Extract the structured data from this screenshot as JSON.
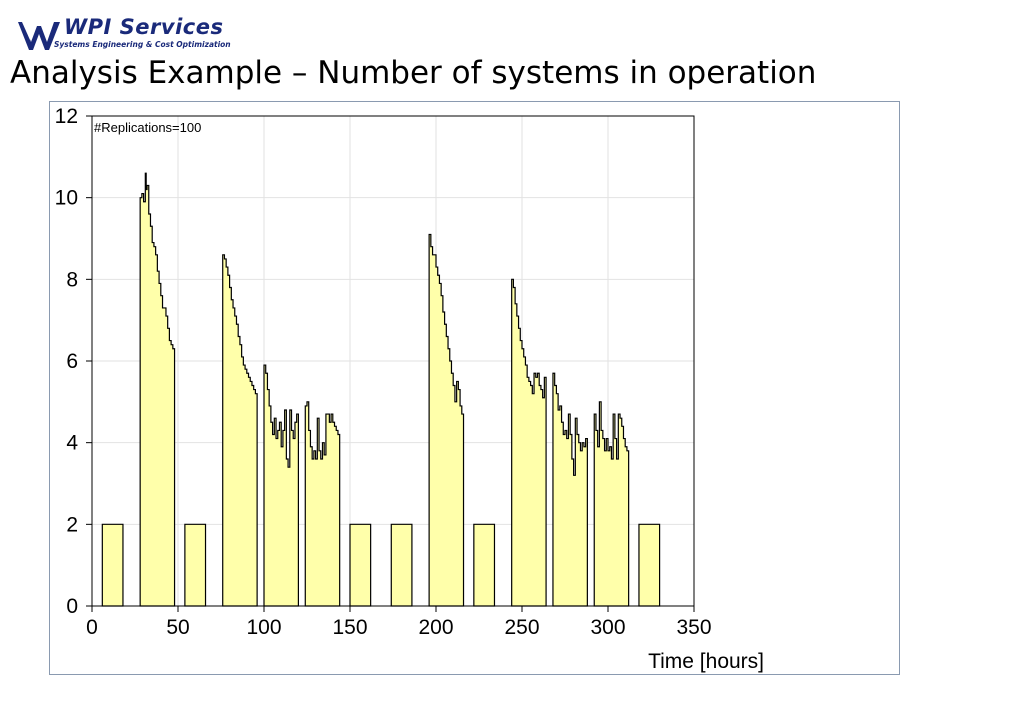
{
  "header": {
    "logo_name": "WPI Services",
    "logo_tagline": "Systems Engineering & Cost Optimization",
    "title": "Analysis Example – Number of systems in operation"
  },
  "chart_data": {
    "type": "area",
    "title": "",
    "annotation": "#Replications=100",
    "xlabel": "Time [hours]",
    "ylabel": "",
    "xlim": [
      0,
      350
    ],
    "ylim": [
      0,
      12
    ],
    "xticks": [
      0,
      50,
      100,
      150,
      200,
      250,
      300,
      350
    ],
    "yticks": [
      0,
      2,
      4,
      6,
      8,
      10,
      12
    ],
    "grid": true,
    "fill_color": "#ffffaa",
    "line_color": "#000000",
    "series": [
      {
        "segments": [
          {
            "x": [
              6,
              18
            ],
            "y": [
              2,
              2
            ]
          },
          {
            "x": [
              28,
              29,
              30,
              31,
              31.5,
              32,
              33,
              34,
              35,
              36,
              37,
              38,
              39,
              40,
              41,
              42,
              43,
              44,
              45,
              46,
              47,
              48
            ],
            "y": [
              10,
              10.1,
              9.9,
              10.6,
              10.2,
              10.3,
              9.6,
              9.3,
              8.9,
              8.8,
              8.6,
              8.2,
              7.9,
              7.6,
              7.3,
              7.3,
              7.1,
              6.8,
              6.5,
              6.4,
              6.3,
              6.3
            ]
          },
          {
            "x": [
              54,
              66
            ],
            "y": [
              2,
              2
            ]
          },
          {
            "x": [
              76,
              77,
              78,
              79,
              80,
              81,
              82,
              83,
              84,
              85,
              86,
              87,
              88,
              89,
              90,
              91,
              92,
              93,
              94,
              95,
              96
            ],
            "y": [
              8.6,
              8.5,
              8.3,
              8.1,
              7.8,
              7.5,
              7.3,
              7.1,
              6.9,
              6.6,
              6.4,
              6.1,
              5.9,
              5.8,
              5.7,
              5.6,
              5.5,
              5.4,
              5.3,
              5.2,
              5.2
            ]
          },
          {
            "x": [
              100,
              101,
              102,
              103,
              104,
              105,
              106,
              107,
              108,
              109,
              110,
              111,
              112,
              113,
              114,
              115,
              116,
              117,
              118,
              119,
              120
            ],
            "y": [
              5.9,
              5.7,
              5.3,
              4.9,
              4.5,
              4.2,
              4.6,
              4.1,
              4.3,
              4.5,
              3.9,
              4.3,
              4.8,
              3.6,
              3.4,
              4.8,
              4.3,
              4.1,
              4.5,
              4.7,
              4.3
            ]
          },
          {
            "x": [
              124,
              125,
              126,
              127,
              128,
              129,
              130,
              131,
              132,
              133,
              134,
              135,
              136,
              137,
              138,
              139,
              140,
              141,
              142,
              143,
              144
            ],
            "y": [
              4.9,
              5.0,
              4.3,
              3.9,
              3.6,
              3.8,
              3.6,
              4.6,
              3.8,
              3.6,
              4.0,
              3.7,
              4.7,
              4.7,
              4.5,
              4.7,
              4.5,
              4.4,
              4.3,
              4.2,
              4.1
            ]
          },
          {
            "x": [
              150,
              162
            ],
            "y": [
              2,
              2
            ]
          },
          {
            "x": [
              174,
              186
            ],
            "y": [
              2,
              2
            ]
          },
          {
            "x": [
              196,
              197,
              198,
              199,
              200,
              201,
              202,
              203,
              204,
              205,
              206,
              207,
              208,
              209,
              210,
              211,
              212,
              213,
              214,
              215,
              216
            ],
            "y": [
              9.1,
              8.8,
              8.6,
              8.6,
              8.3,
              8.1,
              7.9,
              7.6,
              7.2,
              6.9,
              6.6,
              6.3,
              6.0,
              5.7,
              5.4,
              5.0,
              5.5,
              5.3,
              4.9,
              4.7,
              4.6
            ]
          },
          {
            "x": [
              222,
              234
            ],
            "y": [
              2,
              2
            ]
          },
          {
            "x": [
              244,
              245,
              246,
              247,
              248,
              249,
              250,
              251,
              252,
              253,
              254,
              255,
              256,
              257,
              258,
              259,
              260,
              261,
              262,
              263,
              264
            ],
            "y": [
              8.0,
              7.8,
              7.4,
              7.1,
              6.8,
              6.5,
              6.3,
              6.1,
              5.9,
              5.6,
              5.5,
              5.4,
              5.2,
              5.7,
              5.6,
              5.7,
              5.4,
              5.3,
              5.1,
              5.6,
              5.0
            ]
          },
          {
            "x": [
              268,
              269,
              270,
              271,
              272,
              273,
              274,
              275,
              276,
              277,
              278,
              279,
              280,
              281,
              282,
              283,
              284,
              285,
              286,
              287,
              288
            ],
            "y": [
              5.7,
              5.4,
              5.2,
              4.8,
              4.9,
              4.5,
              4.2,
              4.3,
              4.1,
              4.7,
              4.2,
              3.6,
              3.2,
              4.6,
              4.2,
              4.0,
              3.8,
              4.0,
              3.9,
              4.1,
              3.8
            ]
          },
          {
            "x": [
              292,
              293,
              294,
              295,
              296,
              297,
              298,
              299,
              300,
              301,
              302,
              303,
              304,
              305,
              306,
              307,
              308,
              309,
              310,
              311,
              312
            ],
            "y": [
              4.7,
              4.3,
              3.9,
              5.0,
              4.3,
              4.1,
              3.8,
              4.1,
              3.8,
              3.9,
              3.6,
              4.7,
              4.1,
              3.6,
              4.7,
              4.6,
              4.4,
              4.1,
              3.9,
              3.8,
              3.7
            ]
          },
          {
            "x": [
              318,
              330
            ],
            "y": [
              2,
              2
            ]
          }
        ]
      }
    ]
  }
}
